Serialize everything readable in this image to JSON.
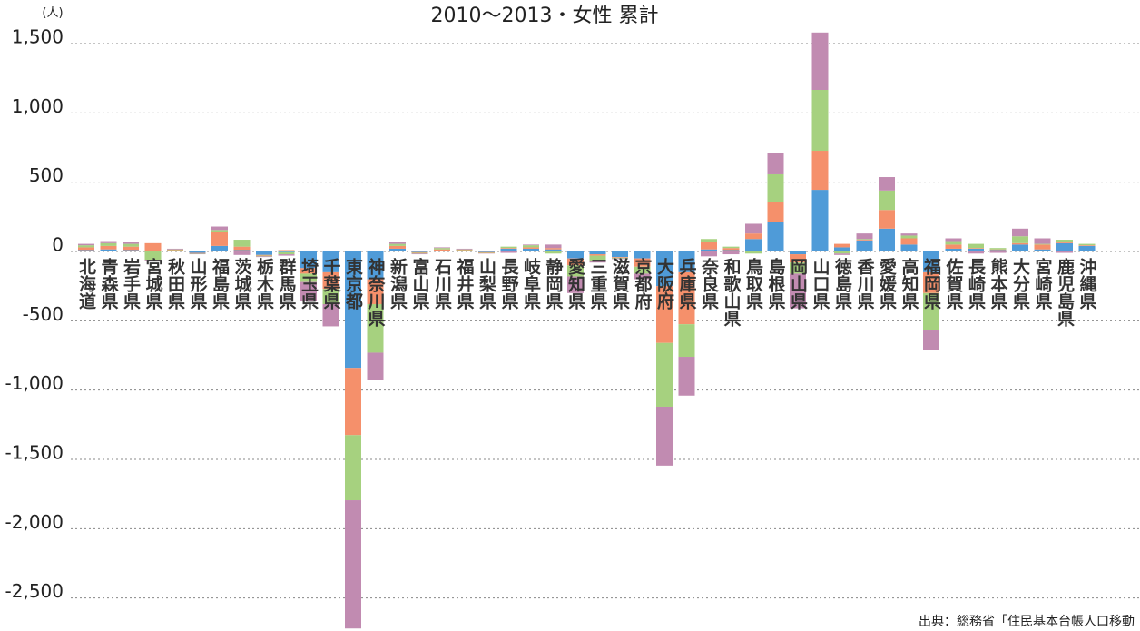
{
  "chart_data": {
    "type": "bar",
    "stacked": true,
    "title": "2010～2013・女性 累計",
    "y_unit": "(人)",
    "source": "出典：総務省「住民基本台帳人口移動",
    "categories": [
      "北海道",
      "青森県",
      "岩手県",
      "宮城県",
      "秋田県",
      "山形県",
      "福島県",
      "茨城県",
      "栃木県",
      "群馬県",
      "埼玉県",
      "千葉県",
      "東京都",
      "神奈川県",
      "新潟県",
      "富山県",
      "石川県",
      "福井県",
      "山梨県",
      "長野県",
      "岐阜県",
      "静岡県",
      "愛知県",
      "三重県",
      "滋賀県",
      "京都府",
      "大阪府",
      "兵庫県",
      "奈良県",
      "和歌山県",
      "鳥取県",
      "島根県",
      "岡山県",
      "山口県",
      "徳島県",
      "香川県",
      "愛媛県",
      "高知県",
      "福岡県",
      "佐賀県",
      "長崎県",
      "熊本県",
      "大分県",
      "宮崎県",
      "鹿児島県",
      "沖縄県"
    ],
    "series": [
      {
        "color": "#4f9bd8",
        "values": [
          10,
          15,
          10,
          5,
          5,
          -10,
          40,
          10,
          -25,
          -5,
          -120,
          -150,
          -840,
          -200,
          20,
          -5,
          5,
          5,
          -5,
          20,
          20,
          15,
          -50,
          -20,
          -40,
          -50,
          -250,
          -150,
          15,
          10,
          90,
          216,
          -20,
          445,
          30,
          80,
          165,
          50,
          -150,
          20,
          20,
          10,
          50,
          15,
          60,
          40
        ]
      },
      {
        "color": "#f5906b",
        "values": [
          20,
          25,
          25,
          55,
          5,
          -3,
          100,
          25,
          -5,
          10,
          -40,
          -120,
          -485,
          -180,
          20,
          -5,
          10,
          5,
          -5,
          5,
          10,
          10,
          -50,
          -10,
          -5,
          -60,
          -410,
          -375,
          55,
          15,
          40,
          139,
          -60,
          282,
          25,
          5,
          135,
          45,
          -150,
          30,
          5,
          5,
          10,
          35,
          10,
          5
        ]
      },
      {
        "color": "#a6d17f",
        "values": [
          15,
          20,
          20,
          -60,
          5,
          -3,
          15,
          50,
          -5,
          -15,
          -60,
          -110,
          -470,
          -350,
          15,
          -5,
          10,
          5,
          -3,
          10,
          15,
          -15,
          -80,
          -40,
          -5,
          -50,
          -460,
          -235,
          20,
          10,
          -15,
          202,
          -80,
          439,
          -15,
          5,
          140,
          20,
          -270,
          25,
          30,
          10,
          50,
          5,
          15,
          10
        ]
      },
      {
        "color": "#c18bb1",
        "values": [
          10,
          15,
          15,
          -10,
          5,
          -4,
          25,
          -25,
          -5,
          -10,
          -140,
          -160,
          -925,
          -200,
          15,
          -5,
          5,
          5,
          -2,
          -10,
          5,
          25,
          -120,
          -10,
          -5,
          -40,
          -425,
          -280,
          -35,
          -20,
          70,
          157,
          -250,
          414,
          -10,
          40,
          97,
          15,
          -140,
          20,
          -15,
          -10,
          55,
          40,
          -10,
          0
        ]
      }
    ],
    "ylim": [
      -2750,
      1620
    ],
    "yticks": [
      {
        "value": 1500,
        "label": "1,500"
      },
      {
        "value": 1000,
        "label": "1,000"
      },
      500,
      0,
      -500,
      {
        "value": -1000,
        "label": "-1,000"
      },
      {
        "value": -1500,
        "label": "-1,500"
      },
      {
        "value": -2000,
        "label": "-2,000"
      },
      {
        "value": -2500,
        "label": "-2,500"
      }
    ],
    "grid": true
  }
}
